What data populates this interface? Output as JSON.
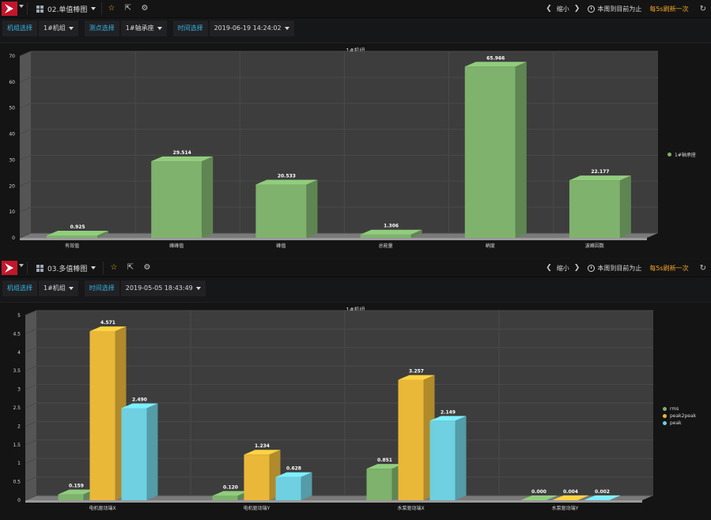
{
  "dashboards": [
    {
      "title": "02.单值棒图",
      "zoom_label": "缩小",
      "time_range_label": "本周到目前为止",
      "refresh_label": "每5s刷新一次",
      "variables": [
        {
          "label": "机组选择",
          "value": "1#机组"
        },
        {
          "label": "测点选择",
          "value": "1#轴承座"
        },
        {
          "label": "时间选择",
          "value": "2019-06-19 14:24:02"
        }
      ],
      "panel_title": "1#机组"
    },
    {
      "title": "03.多值棒图",
      "zoom_label": "缩小",
      "time_range_label": "本周到目前为止",
      "refresh_label": "每5s刷新一次",
      "variables": [
        {
          "label": "机组选择",
          "value": "1#机组"
        },
        {
          "label": "时间选择",
          "value": "2019-05-05 18:43:49"
        }
      ],
      "panel_title": "1#机组"
    }
  ],
  "icons": {
    "logo": "grafana-logo-icon",
    "dashboard": "grid-icon",
    "favorite": "star-icon",
    "share": "share-icon",
    "settings": "gear-icon",
    "zoom_prev": "chevron-left-icon",
    "zoom_next": "chevron-right-icon",
    "clock": "clock-icon",
    "refresh": "refresh-icon"
  },
  "chart_data": [
    {
      "type": "bar",
      "title": "1#机组",
      "categories": [
        "有效值",
        "峰峰值",
        "峰值",
        "总能量",
        "峭度",
        "波峰因数"
      ],
      "series": [
        {
          "name": "1#轴承座",
          "color": "#7eb26d",
          "values": [
            0.925,
            29.514,
            20.533,
            1.306,
            65.966,
            22.177
          ]
        }
      ],
      "data_labels": [
        "0.925",
        "29.514",
        "20.533",
        "1.306",
        "65.966",
        "22.177"
      ],
      "ylim": [
        0,
        70
      ],
      "yticks": [
        "0",
        "10",
        "20",
        "30",
        "40",
        "50",
        "60",
        "70"
      ],
      "grid": true,
      "legend_position": "right",
      "style": "3d"
    },
    {
      "type": "bar",
      "title": "1#机组",
      "categories": [
        "电机驱动端X",
        "电机驱动端Y",
        "水泵驱动端X",
        "水泵驱动端Y"
      ],
      "series": [
        {
          "name": "rms",
          "color": "#7eb26d",
          "values": [
            0.159,
            0.12,
            0.851,
            0.0
          ]
        },
        {
          "name": "peak2peak",
          "color": "#eab839",
          "values": [
            4.571,
            1.234,
            3.257,
            0.004
          ]
        },
        {
          "name": "peak",
          "color": "#6ed0e0",
          "values": [
            2.49,
            0.628,
            2.149,
            0.002
          ]
        }
      ],
      "data_labels": [
        [
          "0.159",
          "0.120",
          "0.851",
          "0.000"
        ],
        [
          "4.571",
          "1.234",
          "3.257",
          "0.004"
        ],
        [
          "2.490",
          "0.628",
          "2.149",
          "0.002"
        ]
      ],
      "ylim": [
        0,
        5
      ],
      "yticks": [
        "0",
        "0.5",
        "1",
        "1.5",
        "2",
        "2.5",
        "3",
        "3.5",
        "4",
        "4.5",
        "5"
      ],
      "grid": true,
      "legend_position": "right",
      "style": "3d"
    }
  ]
}
